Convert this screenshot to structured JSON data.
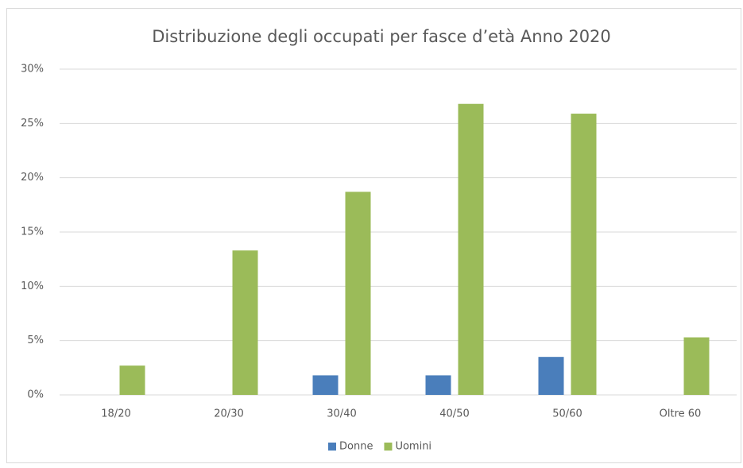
{
  "chart_data": {
    "type": "bar",
    "title": "Distribuzione degli occupati per fasce d’età Anno 2020",
    "categories": [
      "18/20",
      "20/30",
      "30/40",
      "40/50",
      "50/60",
      "Oltre 60"
    ],
    "series": [
      {
        "name": "Donne",
        "color": "#4a7ebb",
        "values": [
          0,
          0,
          1.8,
          1.8,
          3.5,
          0
        ]
      },
      {
        "name": "Uomini",
        "color": "#9bbb59",
        "values": [
          2.7,
          13.3,
          18.7,
          26.8,
          25.9,
          5.3
        ]
      }
    ],
    "ylim": [
      0,
      30
    ],
    "yticks": [
      {
        "value": 0,
        "label": "0%"
      },
      {
        "value": 5,
        "label": "5%"
      },
      {
        "value": 10,
        "label": "10%"
      },
      {
        "value": 15,
        "label": "15%"
      },
      {
        "value": 20,
        "label": "20%"
      },
      {
        "value": 25,
        "label": "25%"
      },
      {
        "value": 30,
        "label": "30%"
      }
    ],
    "grid": true,
    "legend": "bottom"
  }
}
